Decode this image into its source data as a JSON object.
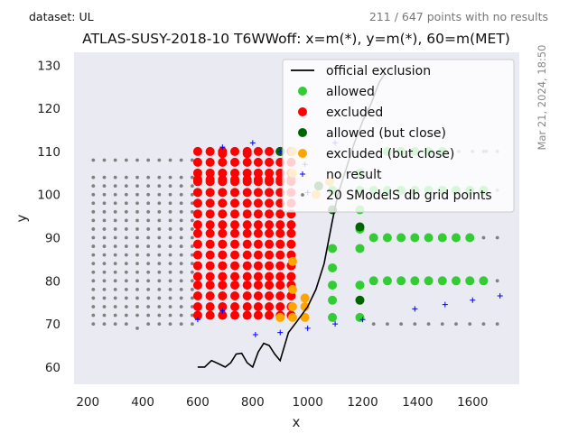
{
  "header": {
    "dataset": "dataset: UL",
    "no_result_count": "211 / 647 points with no results",
    "timestamp": "Mar 21, 2024, 18:50"
  },
  "colors": {
    "allowed": "#32cd32",
    "excluded": "#ff0000",
    "allowed_close": "#006400",
    "excluded_close": "#ffa500",
    "no_result": "#0000ff",
    "grid_points": "#808080",
    "exclusion_line": "#000000",
    "plot_bg": "#eaeaf2"
  },
  "chart_data": {
    "type": "scatter",
    "title": "ATLAS-SUSY-2018-10 T6WWoff: x=m(*), y=m(*), 60=m(MET)",
    "xlabel": "x",
    "ylabel": "y",
    "xlim": [
      150,
      1770
    ],
    "ylim": [
      56,
      133
    ],
    "xticks": [
      200,
      400,
      600,
      800,
      1000,
      1200,
      1400,
      1600
    ],
    "yticks": [
      60,
      70,
      80,
      90,
      100,
      110,
      120,
      130
    ],
    "grid": false,
    "legend_position": "top-right",
    "legend": [
      {
        "label": "official exclusion",
        "kind": "line",
        "color": "#000000"
      },
      {
        "label": "allowed",
        "kind": "dot",
        "color": "#32cd32"
      },
      {
        "label": "excluded",
        "kind": "dot",
        "color": "#ff0000"
      },
      {
        "label": "allowed (but close)",
        "kind": "dot",
        "color": "#006400"
      },
      {
        "label": "excluded (but close)",
        "kind": "dot",
        "color": "#ffa500"
      },
      {
        "label": "no result",
        "kind": "plus",
        "color": "#0000ff"
      },
      {
        "label": "20 SModelS db grid points",
        "kind": "small",
        "color": "#808080"
      }
    ],
    "official_exclusion": {
      "x": [
        600,
        625,
        650,
        675,
        700,
        720,
        740,
        760,
        780,
        800,
        820,
        840,
        860,
        880,
        900,
        930,
        960,
        1000,
        1030,
        1060,
        1090,
        1110,
        1140,
        1170,
        1200,
        1230,
        1260,
        1280
      ],
      "y": [
        60,
        60,
        61.5,
        60.8,
        60,
        61,
        63,
        63.2,
        61,
        60,
        63.5,
        65.5,
        65,
        63,
        61.5,
        68,
        70.5,
        74,
        78,
        84,
        94,
        100,
        106,
        112,
        117,
        121,
        126,
        128
      ]
    },
    "series": [
      {
        "name": "excluded",
        "x": [
          600,
          645,
          690,
          735,
          780,
          820,
          860,
          900,
          940,
          600,
          645,
          690,
          735,
          780,
          820,
          860,
          900,
          940,
          600,
          645,
          690,
          735,
          780,
          820,
          860,
          900,
          940,
          600,
          645,
          690,
          735,
          780,
          820,
          860,
          900,
          940,
          600,
          645,
          690,
          735,
          780,
          820,
          860,
          900,
          940,
          600,
          645,
          690,
          735,
          780,
          820,
          860,
          900,
          940,
          600,
          645,
          690,
          735,
          780,
          820,
          860,
          900,
          940,
          600,
          645,
          690,
          735,
          780,
          820,
          860,
          900,
          940,
          600,
          645,
          690,
          735,
          780,
          820,
          860,
          900,
          940,
          600,
          645,
          690,
          735,
          780,
          820,
          860,
          900,
          940,
          600,
          645,
          690,
          735,
          780,
          820,
          860,
          900,
          940,
          600,
          645,
          690,
          735,
          780,
          820,
          860,
          900,
          940,
          600,
          645,
          690,
          735,
          780,
          820,
          860,
          900,
          940,
          600,
          645,
          690,
          735,
          780,
          820,
          860,
          900,
          940,
          600,
          645,
          690,
          735,
          780,
          820,
          860,
          900,
          940,
          600,
          645,
          690,
          735,
          780,
          820,
          860,
          900,
          940,
          600,
          645,
          690,
          735,
          780,
          820,
          860,
          900,
          940,
          600,
          645,
          690,
          735,
          780,
          820,
          860,
          900,
          940,
          690,
          780
        ],
        "y": [
          72,
          72,
          72,
          72,
          72,
          72,
          72,
          72,
          72,
          74,
          74,
          74,
          74,
          74,
          74,
          74,
          74,
          74,
          76.5,
          76.5,
          76.5,
          76.5,
          76.5,
          76.5,
          76.5,
          76.5,
          76.5,
          79,
          79,
          79,
          79,
          79,
          79,
          79,
          79,
          79,
          81,
          81,
          81,
          81,
          81,
          81,
          81,
          81,
          81,
          83.5,
          83.5,
          83.5,
          83.5,
          83.5,
          83.5,
          83.5,
          83.5,
          83.5,
          86,
          86,
          86,
          86,
          86,
          86,
          86,
          86,
          86,
          88.5,
          88.5,
          88.5,
          88.5,
          88.5,
          88.5,
          88.5,
          88.5,
          88.5,
          91,
          91,
          91,
          91,
          91,
          91,
          91,
          91,
          91,
          93,
          93,
          93,
          93,
          93,
          93,
          93,
          93,
          93,
          95.5,
          95.5,
          95.5,
          95.5,
          95.5,
          95.5,
          95.5,
          95.5,
          95.5,
          98,
          98,
          98,
          98,
          98,
          98,
          98,
          98,
          98,
          100.5,
          100.5,
          100.5,
          100.5,
          100.5,
          100.5,
          100.5,
          100.5,
          100.5,
          103,
          103,
          103,
          103,
          103,
          103,
          103,
          103,
          103,
          105,
          105,
          105,
          105,
          105,
          105,
          105,
          105,
          105,
          107.5,
          107.5,
          107.5,
          107.5,
          107.5,
          107.5,
          107.5,
          107.5,
          107.5,
          110,
          110,
          110,
          110,
          110,
          110,
          110,
          110,
          110,
          103.5,
          103.5,
          103.5,
          103.5,
          103.5,
          103.5,
          103.5,
          103.5,
          103.5,
          109.5,
          109.5
        ]
      },
      {
        "name": "excluded (but close)",
        "x": [
          900,
          945,
          990,
          945,
          990,
          945,
          990,
          945,
          1030,
          1080,
          945,
          945
        ],
        "y": [
          71.5,
          71.5,
          71.5,
          74,
          74,
          78,
          76,
          84.5,
          100,
          103,
          105,
          110
        ]
      },
      {
        "name": "allowed",
        "x": [
          1090,
          1090,
          1090,
          1090,
          1090,
          1090,
          1190,
          1190,
          1190,
          1190,
          1190,
          1190,
          1190,
          1240,
          1290,
          1340,
          1390,
          1440,
          1490,
          1540,
          1590,
          1640,
          1240,
          1290,
          1340,
          1390,
          1440,
          1490,
          1540,
          1590,
          1240,
          1290,
          1340,
          1390,
          1440,
          1490,
          1540,
          1590,
          1640,
          1290,
          1340,
          1390,
          1440,
          1490
        ],
        "y": [
          71.5,
          75.5,
          79,
          83,
          87.5,
          101,
          71.5,
          79,
          87.5,
          92,
          96.5,
          101,
          105,
          80,
          80,
          80,
          80,
          80,
          80,
          80,
          80,
          80,
          90,
          90,
          90,
          90,
          90,
          90,
          90,
          90,
          101,
          101,
          101,
          101,
          101,
          101,
          101,
          101,
          101,
          110,
          110,
          110,
          110,
          110
        ]
      },
      {
        "name": "allowed (but close)",
        "x": [
          900,
          1090,
          1190,
          1190,
          1040
        ],
        "y": [
          110,
          96.5,
          92.5,
          75.5,
          102
        ]
      },
      {
        "name": "no result",
        "x": [
          600,
          690,
          690,
          800,
          810,
          900,
          900,
          1000,
          1000,
          1100,
          1100,
          1200,
          1390,
          1500,
          1600,
          1700,
          990
        ],
        "y": [
          71,
          73,
          111,
          112,
          67.5,
          68,
          110,
          69,
          100.5,
          70,
          112,
          71,
          73.5,
          74.5,
          75.5,
          76.5,
          107
        ]
      },
      {
        "name": "20 SModelS db grid points",
        "x": [
          220,
          260,
          300,
          340,
          380,
          420,
          460,
          500,
          540,
          580,
          220,
          260,
          300,
          340,
          380,
          420,
          460,
          500,
          540,
          580,
          220,
          260,
          300,
          340,
          380,
          420,
          460,
          500,
          540,
          580,
          220,
          260,
          300,
          340,
          380,
          420,
          460,
          500,
          540,
          580,
          220,
          260,
          300,
          340,
          380,
          420,
          460,
          500,
          540,
          580,
          220,
          260,
          300,
          340,
          380,
          420,
          460,
          500,
          540,
          580,
          220,
          260,
          300,
          340,
          380,
          420,
          460,
          500,
          540,
          580,
          220,
          260,
          300,
          340,
          380,
          420,
          460,
          500,
          540,
          580,
          220,
          260,
          300,
          340,
          380,
          420,
          460,
          500,
          540,
          580,
          220,
          260,
          300,
          340,
          380,
          420,
          460,
          500,
          540,
          580,
          220,
          260,
          300,
          340,
          380,
          420,
          460,
          500,
          540,
          580,
          220,
          260,
          300,
          340,
          380,
          420,
          460,
          500,
          540,
          580,
          220,
          260,
          300,
          340,
          380,
          420,
          460,
          500,
          540,
          580,
          220,
          260,
          300,
          340,
          380,
          420,
          460,
          500,
          540,
          580,
          220,
          260,
          300,
          340,
          380,
          420,
          460,
          500,
          540,
          580,
          220,
          260,
          300,
          340,
          380,
          420,
          460,
          500,
          540,
          580,
          220,
          260,
          300,
          340,
          380,
          420,
          460,
          500,
          540,
          580,
          220,
          260,
          300,
          340,
          380,
          420,
          460,
          500,
          540,
          580,
          220,
          260,
          300,
          340,
          380,
          420,
          460,
          500,
          540,
          580,
          1240,
          1290,
          1340,
          1390,
          1440,
          1490,
          1540,
          1590,
          1640,
          1690,
          1640,
          1690,
          1640,
          1690,
          1640,
          1690,
          1640,
          1690,
          1550,
          1600,
          1650
        ],
        "y": [
          70,
          70,
          70,
          70,
          69,
          70,
          70,
          70,
          70,
          70,
          72,
          72,
          72,
          72,
          72,
          72,
          72,
          72,
          72,
          72,
          74,
          74,
          74,
          74,
          74,
          74,
          74,
          74,
          74,
          74,
          76,
          76,
          76,
          76,
          76,
          76,
          76,
          76,
          76,
          76,
          78,
          78,
          78,
          78,
          78,
          78,
          78,
          78,
          78,
          78,
          80,
          80,
          80,
          80,
          80,
          80,
          80,
          80,
          80,
          80,
          82,
          82,
          82,
          82,
          82,
          82,
          82,
          82,
          82,
          82,
          84,
          84,
          84,
          84,
          84,
          84,
          84,
          84,
          84,
          84,
          86,
          86,
          86,
          86,
          86,
          86,
          86,
          86,
          86,
          86,
          88,
          88,
          88,
          88,
          88,
          88,
          88,
          88,
          88,
          88,
          90,
          90,
          90,
          90,
          90,
          90,
          90,
          90,
          90,
          90,
          92,
          92,
          92,
          92,
          92,
          92,
          92,
          92,
          92,
          92,
          94,
          94,
          94,
          94,
          94,
          94,
          94,
          94,
          94,
          94,
          96,
          96,
          96,
          96,
          96,
          96,
          96,
          96,
          96,
          96,
          98,
          98,
          98,
          98,
          98,
          98,
          98,
          98,
          98,
          98,
          100,
          100,
          100,
          100,
          100,
          100,
          100,
          100,
          100,
          100,
          102,
          102,
          102,
          102,
          102,
          102,
          102,
          102,
          102,
          102,
          104,
          104,
          104,
          104,
          104,
          104,
          104,
          104,
          104,
          104,
          108,
          108,
          108,
          108,
          108,
          108,
          108,
          108,
          108,
          108,
          70,
          70,
          70,
          70,
          70,
          70,
          70,
          70,
          70,
          70,
          80,
          80,
          90,
          90,
          101,
          101,
          110,
          110,
          110,
          110,
          110
        ]
      }
    ]
  }
}
